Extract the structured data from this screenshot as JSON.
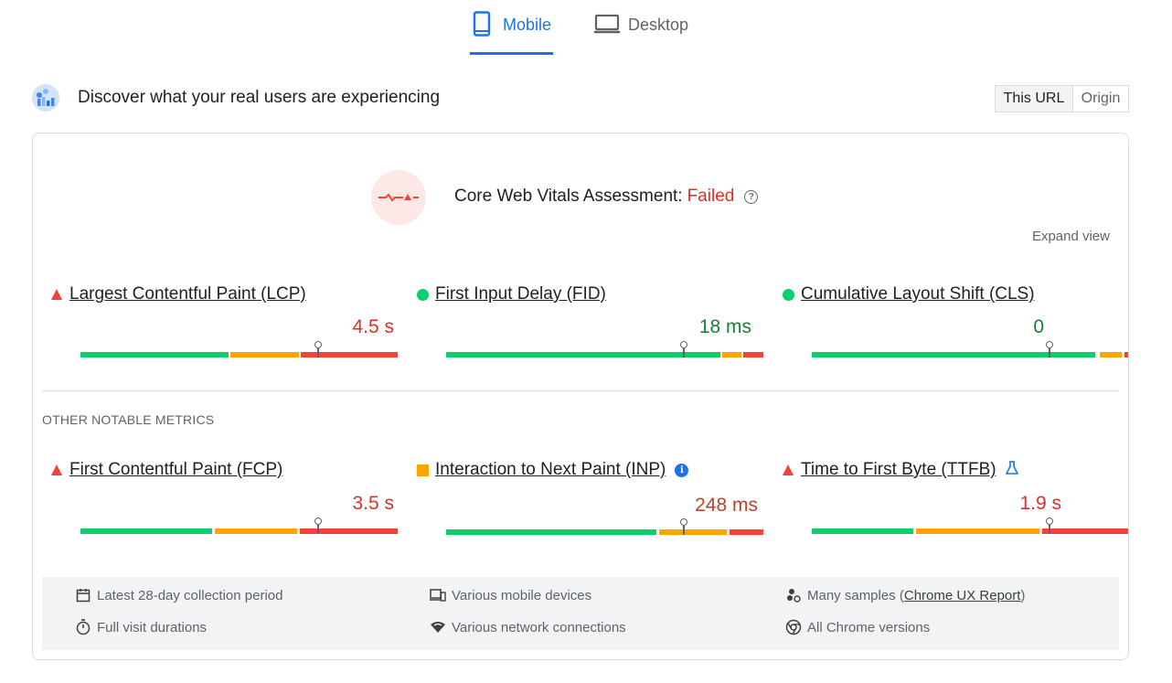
{
  "tabs": [
    {
      "label": "Mobile",
      "icon": "phone-icon",
      "active": true
    },
    {
      "label": "Desktop",
      "icon": "laptop-icon",
      "active": false
    }
  ],
  "discover": {
    "title": "Discover what your real users are experiencing",
    "toggle": {
      "this_url": "This URL",
      "origin": "Origin",
      "selected": "This URL"
    }
  },
  "assessment": {
    "label": "Core Web Vitals Assessment:",
    "status": "Failed",
    "expand": "Expand view"
  },
  "core_metrics": [
    {
      "name": "Largest Contentful Paint (LCP)",
      "value": "4.5 s",
      "status": "poor",
      "value_color": "#d93025",
      "distribution": {
        "good": 47,
        "ni": 22,
        "poor": 31
      }
    },
    {
      "name": "First Input Delay (FID)",
      "value": "18 ms",
      "status": "good",
      "value_color": "#188038",
      "distribution": {
        "good": 85,
        "ni": 7,
        "poor": 8
      }
    },
    {
      "name": "Cumulative Layout Shift (CLS)",
      "value": "0",
      "status": "good",
      "value_color": "#188038",
      "distribution": {
        "good": 89,
        "ni": 8,
        "poor": 3
      }
    }
  ],
  "other_heading": "OTHER NOTABLE METRICS",
  "other_metrics": [
    {
      "name": "First Contentful Paint (FCP)",
      "value": "3.5 s",
      "status": "poor",
      "value_color": "#d93025",
      "distribution": {
        "good": 42,
        "ni": 27,
        "poor": 31
      }
    },
    {
      "name": "Interaction to Next Paint (INP)",
      "value": "248 ms",
      "status": "needs-improvement",
      "value_color": "#c5221f",
      "extra_icon": "info-icon",
      "distribution": {
        "good": 67,
        "ni": 22,
        "poor": 11
      }
    },
    {
      "name": "Time to First Byte (TTFB)",
      "value": "1.9 s",
      "status": "poor",
      "value_color": "#d93025",
      "extra_icon": "beaker-icon",
      "distribution": {
        "good": 33,
        "ni": 40,
        "poor": 27
      }
    }
  ],
  "footer": {
    "collection": "Latest 28-day collection period",
    "visits": "Full visit durations",
    "devices": "Various mobile devices",
    "network": "Various network connections",
    "samples_prefix": "Many samples (",
    "samples_link": "Chrome UX Report",
    "samples_suffix": ")",
    "versions": "All Chrome versions"
  }
}
